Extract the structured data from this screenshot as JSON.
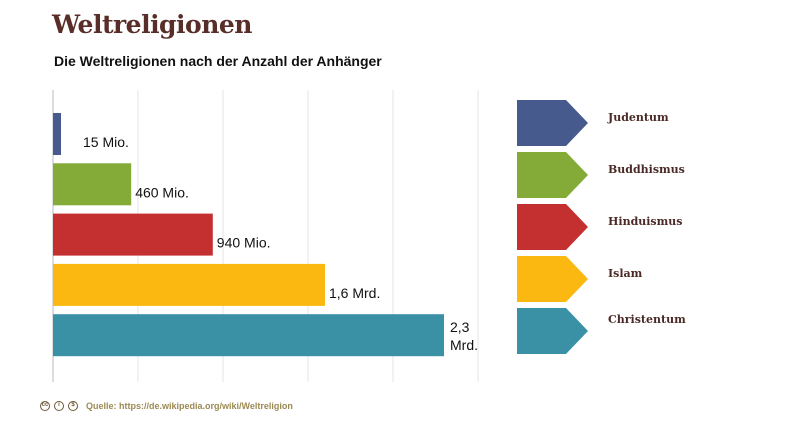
{
  "header": {
    "title": "Weltreligionen"
  },
  "chart_data": {
    "type": "bar",
    "orientation": "horizontal",
    "title": "Die Weltreligionen nach der Anzahl der Anhänger",
    "unit": "Mrd.",
    "categories": [
      "Judentum",
      "Buddhismus",
      "Hinduismus",
      "Islam",
      "Christentum"
    ],
    "values": [
      0.015,
      0.46,
      0.94,
      1.6,
      2.3
    ],
    "data_labels": [
      "15 Mio.",
      "460 Mio.",
      "940 Mio.",
      "1,6 Mrd.",
      "2,3 Mrd."
    ],
    "colors": [
      "#465a8e",
      "#84ab38",
      "#c42f2f",
      "#fbb810",
      "#3a91a6"
    ],
    "xlim": [
      0,
      2.5
    ],
    "grid": true,
    "legend": "right"
  },
  "footer": {
    "source": "Quelle: https://de.wikipedia.org/wiki/Weltreligion",
    "license_icons": [
      "cc-icon",
      "by-icon",
      "nc-icon"
    ]
  }
}
